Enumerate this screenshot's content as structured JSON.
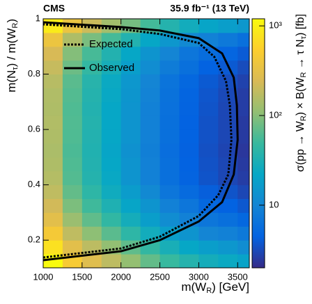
{
  "chart_data": {
    "type": "heatmap",
    "experiment": "CMS",
    "lumi": "35.9 fb⁻¹ (13 TeV)",
    "xlabel": [
      "m(W",
      "R",
      ") [GeV]"
    ],
    "ylabel": [
      "m(N",
      "τ",
      ") / m(W",
      "R",
      ")"
    ],
    "zlabel": [
      "σ(pp → W",
      "R",
      ") × B(W",
      "R",
      " → τ N",
      "τ",
      ") [fb]"
    ],
    "xlim": [
      1000,
      3650
    ],
    "ylim": [
      0.1,
      1
    ],
    "xticks": [
      1000,
      1500,
      2000,
      2500,
      3000,
      3500
    ],
    "yticks": [
      0.2,
      0.4,
      0.6,
      0.8,
      1
    ],
    "zlim": [
      2,
      1200
    ],
    "zscale": "log",
    "zticks": [
      10,
      {
        "value": 100,
        "label": "10²"
      },
      {
        "value": 1000,
        "label": "10³"
      }
    ],
    "colormap": [
      "#352a87",
      "#0363e1",
      "#1485d4",
      "#06a7c6",
      "#38b99e",
      "#92bf73",
      "#d9ba56",
      "#fcce2e",
      "#f9fb0e"
    ],
    "xbins": [
      1000,
      1250,
      1500,
      1750,
      2000,
      2250,
      2500,
      2750,
      3000,
      3250,
      3500,
      3750
    ],
    "ybins": [
      0.1,
      0.15,
      0.2,
      0.25,
      0.3,
      0.35,
      0.4,
      0.45,
      0.5,
      0.55,
      0.6,
      0.65,
      0.7,
      0.75,
      0.8,
      0.85,
      0.9,
      0.95,
      1
    ],
    "z": [
      [
        1200,
        480,
        280,
        176,
        112,
        72,
        48,
        36,
        28,
        24,
        20
      ],
      [
        750,
        300,
        175,
        110,
        70,
        45,
        30,
        22,
        18,
        15,
        12
      ],
      [
        450,
        180,
        105,
        66,
        42,
        27,
        18,
        14,
        10,
        9,
        7.5
      ],
      [
        300,
        120,
        70,
        44,
        28,
        18,
        12,
        9,
        7,
        6,
        5
      ],
      [
        225,
        90,
        52,
        33,
        21,
        14,
        9,
        7,
        5,
        4.5,
        3.8
      ],
      [
        180,
        72,
        42,
        26,
        17,
        11,
        7,
        5.4,
        4.2,
        3.6,
        3
      ],
      [
        160,
        62,
        36,
        23,
        14,
        9,
        6,
        4.6,
        3.6,
        3,
        2.6
      ],
      [
        150,
        60,
        35,
        22,
        14,
        9,
        6,
        4.5,
        3.5,
        3,
        2.5
      ],
      [
        145,
        58,
        34,
        21,
        13,
        8.5,
        5.8,
        4.4,
        3.4,
        2.9,
        2.4
      ],
      [
        150,
        60,
        35,
        22,
        14,
        9,
        6,
        4.5,
        3.5,
        3,
        2.5
      ],
      [
        155,
        61,
        36,
        22,
        14,
        9,
        6,
        4.5,
        3.5,
        3,
        2.5
      ],
      [
        150,
        60,
        35,
        22,
        14,
        9,
        6.2,
        4.6,
        3.6,
        3,
        2.6
      ],
      [
        152,
        62,
        36,
        23,
        14.5,
        9.4,
        6.3,
        4.7,
        3.7,
        3.1,
        2.6
      ],
      [
        165,
        66,
        38,
        24,
        15,
        10,
        6.6,
        5,
        3.9,
        3.3,
        2.8
      ],
      [
        195,
        78,
        45,
        29,
        18,
        12,
        8,
        6,
        4.5,
        3.9,
        3.2
      ],
      [
        240,
        96,
        56,
        35,
        22,
        14,
        10,
        7,
        5.6,
        4.8,
        4
      ],
      [
        375,
        150,
        88,
        55,
        35,
        22,
        15,
        11,
        9,
        7.5,
        6
      ],
      [
        900,
        360,
        210,
        132,
        84,
        54,
        36,
        27,
        21,
        18,
        15
      ]
    ],
    "legend": "upper left",
    "series": [
      {
        "name": "Expected",
        "color": "#000000",
        "dash": "dotted",
        "x": [
          1000,
          2000,
          2500,
          3000,
          3250,
          3380,
          3420,
          3400,
          3350,
          3200,
          3000,
          2500,
          2000,
          1000
        ],
        "values": [
          0.1375,
          0.17,
          0.2125,
          0.2875,
          0.3625,
          0.4375,
          0.5625,
          0.6875,
          0.775,
          0.8625,
          0.9125,
          0.945,
          0.9625,
          0.98
        ]
      },
      {
        "name": "Observed",
        "color": "#000000",
        "dash": "solid",
        "x": [
          1000,
          2000,
          2500,
          3000,
          3300,
          3450,
          3500,
          3490,
          3450,
          3300,
          3000,
          2500,
          2000,
          1000
        ],
        "values": [
          0.1275,
          0.16,
          0.2,
          0.2675,
          0.3375,
          0.4375,
          0.5625,
          0.6875,
          0.7875,
          0.875,
          0.93,
          0.9575,
          0.97,
          0.9875
        ]
      }
    ]
  }
}
